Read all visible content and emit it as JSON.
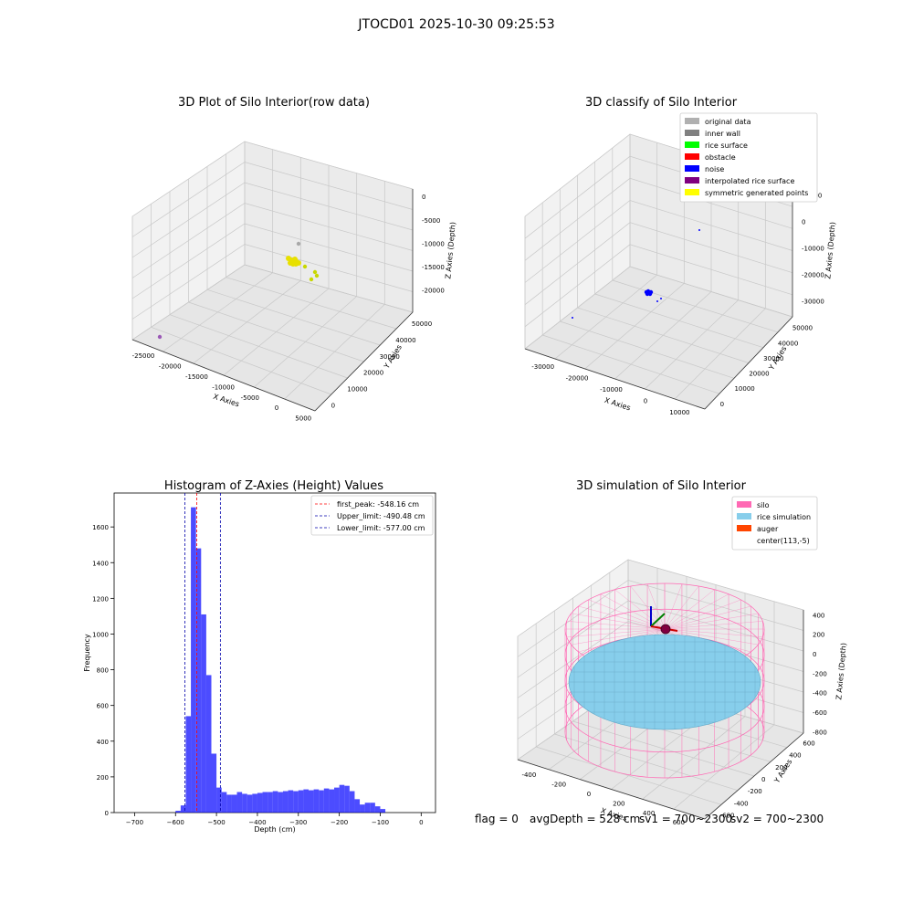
{
  "figure_title": "JTOCD01 2025-10-30 09:25:53",
  "footer": {
    "flag": "flag = 0",
    "avg": "avgDepth = 528 cm",
    "sv1": "sv1 = 700~2300",
    "sv2": "sv2 = 700~2300"
  },
  "chart_data": [
    {
      "type": "scatter",
      "projection": "3d",
      "title": "3D Plot of Silo Interior(row data)",
      "xlabel": "X Axies",
      "ylabel": "Y Axies",
      "zlabel": "Z Axies (Depth)",
      "xticks": [
        "-25000",
        "-20000",
        "-15000",
        "-10000",
        "-5000",
        "0",
        "5000"
      ],
      "yticks": [
        "0",
        "10000",
        "20000",
        "30000",
        "40000",
        "50000"
      ],
      "zticks": [
        "0",
        "-5000",
        "-10000",
        "-15000",
        "-20000"
      ],
      "grid": true,
      "points": [
        {
          "label": "gray point",
          "color": "#a8a8a8"
        },
        {
          "label": "yellow cluster",
          "color": "#e8e000"
        },
        {
          "label": "yellow points",
          "color": "#c8d800"
        },
        {
          "label": "purple point",
          "color": "#9b59b6"
        }
      ]
    },
    {
      "type": "scatter",
      "projection": "3d",
      "title": "3D classify of Silo Interior",
      "xlabel": "X Axies",
      "ylabel": "Y Axies",
      "zlabel": "Z Axies (Depth)",
      "xticks": [
        "-30000",
        "-20000",
        "-10000",
        "0",
        "10000"
      ],
      "yticks": [
        "0",
        "10000",
        "20000",
        "30000",
        "40000",
        "50000"
      ],
      "zticks": [
        "10000",
        "0",
        "-10000",
        "-20000",
        "-30000"
      ],
      "grid": true,
      "legend_position": "top-right",
      "legend": [
        {
          "label": "original data",
          "color": "#b0b0b0"
        },
        {
          "label": "inner wall",
          "color": "#808080"
        },
        {
          "label": "rice surface",
          "color": "#00ff00"
        },
        {
          "label": "obstacle",
          "color": "#ff0000"
        },
        {
          "label": "noise",
          "color": "#0000ff"
        },
        {
          "label": "interpolated rice surface",
          "color": "#800080"
        },
        {
          "label": "symmetric generated points",
          "color": "#ffff00"
        }
      ]
    },
    {
      "type": "bar",
      "title": "Histogram of Z-Axies (Height) Values",
      "xlabel": "Depth (cm)",
      "ylabel": "Frequency",
      "xlim": [
        -750,
        35
      ],
      "ylim": [
        0,
        1790
      ],
      "xticks": [
        -700,
        -600,
        -500,
        -400,
        -300,
        -200,
        -100,
        0
      ],
      "yticks": [
        0,
        200,
        400,
        600,
        800,
        1000,
        1200,
        1400,
        1600
      ],
      "bar_color": "#0000ff",
      "bin_width": 12.5,
      "bins_start": -600,
      "values": [
        10,
        40,
        540,
        1710,
        1480,
        1110,
        770,
        330,
        140,
        115,
        100,
        100,
        115,
        105,
        100,
        105,
        110,
        115,
        115,
        120,
        115,
        120,
        125,
        120,
        125,
        130,
        125,
        130,
        125,
        135,
        130,
        140,
        155,
        150,
        120,
        75,
        45,
        55,
        55,
        35,
        20
      ],
      "vlines": [
        {
          "label": "first_peak: -548.16 cm",
          "x": -548.16,
          "color": "#ff0000"
        },
        {
          "label": "Upper_limit: -490.48 cm",
          "x": -490.48,
          "color": "#0000aa"
        },
        {
          "label": "Lower_limit: -577.00 cm",
          "x": -577.0,
          "color": "#0000aa"
        }
      ],
      "legend_position": "top-right"
    },
    {
      "type": "scatter",
      "projection": "3d",
      "title": "3D simulation of Silo Interior",
      "xlabel": "X Axies",
      "ylabel": "Y Axies",
      "zlabel": "Z Axies (Depth)",
      "xticks": [
        "-400",
        "-200",
        "0",
        "200",
        "400",
        "600"
      ],
      "yticks": [
        "-600",
        "-400",
        "-200",
        "0",
        "200",
        "400",
        "600"
      ],
      "zticks": [
        "400",
        "200",
        "0",
        "-200",
        "-400",
        "-600",
        "-800"
      ],
      "grid": true,
      "legend_position": "top-right",
      "legend": [
        {
          "label": "silo",
          "color": "#ff69b4"
        },
        {
          "label": "rice simulation",
          "color": "#87ceeb"
        },
        {
          "label": "auger",
          "color": "#ff4500"
        },
        {
          "label": "center(113,-5)",
          "color": "none"
        }
      ]
    }
  ]
}
